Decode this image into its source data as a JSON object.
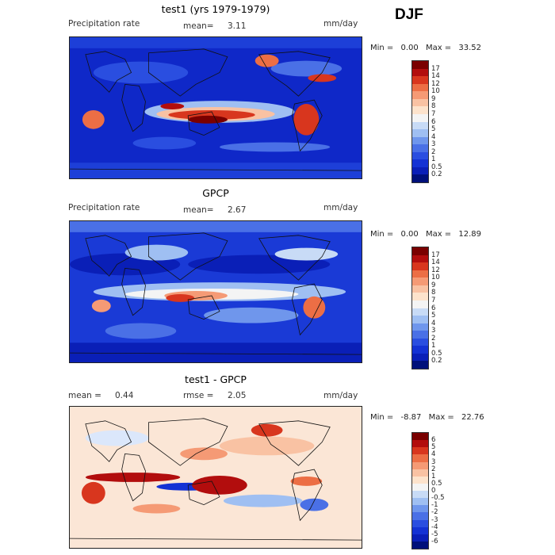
{
  "season": "DJF",
  "panels": [
    {
      "id": "test1",
      "title": "test1 (yrs 1979-1979)",
      "left_label": "Precipitation rate",
      "stat_label": "mean=",
      "stat_value": "3.11",
      "units": "mm/day",
      "min_label": "Min =",
      "min_value": "0.00",
      "max_label": "Max =",
      "max_value": "33.52",
      "colorbar": {
        "ticks": [
          "17",
          "14",
          "12",
          "10",
          "9",
          "8",
          "7",
          "6",
          "5",
          "4",
          "3",
          "2",
          "1",
          "0.5",
          "0.2"
        ],
        "colors": [
          "#7a0000",
          "#b20d0d",
          "#d8361e",
          "#ec6e45",
          "#f59a75",
          "#f9c2a3",
          "#fde3cc",
          "#f4f4f4",
          "#c8dbf6",
          "#9fbff2",
          "#6f96ec",
          "#4a70e6",
          "#2a4ee0",
          "#1432d4",
          "#0a1fb7",
          "#00107a"
        ]
      },
      "palette": [
        "#00107a",
        "#0a1fb7",
        "#1432d4",
        "#2a4ee0",
        "#4a70e6",
        "#6f96ec",
        "#9fbff2",
        "#c8dbf6",
        "#f4f4f4",
        "#fde3cc",
        "#f9c2a3",
        "#f59a75",
        "#ec6e45",
        "#d8361e",
        "#b20d0d",
        "#7a0000"
      ]
    },
    {
      "id": "gpcp",
      "title": "GPCP",
      "left_label": "Precipitation rate",
      "stat_label": "mean=",
      "stat_value": "2.67",
      "units": "mm/day",
      "min_label": "Min =",
      "min_value": "0.00",
      "max_label": "Max =",
      "max_value": "12.89",
      "colorbar": {
        "ticks": [
          "17",
          "14",
          "12",
          "10",
          "9",
          "8",
          "7",
          "6",
          "5",
          "4",
          "3",
          "2",
          "1",
          "0.5",
          "0.2"
        ],
        "colors": [
          "#7a0000",
          "#b20d0d",
          "#d8361e",
          "#ec6e45",
          "#f59a75",
          "#f9c2a3",
          "#fde3cc",
          "#f4f4f4",
          "#c8dbf6",
          "#9fbff2",
          "#6f96ec",
          "#4a70e6",
          "#2a4ee0",
          "#1432d4",
          "#0a1fb7",
          "#00107a"
        ]
      },
      "palette": [
        "#00107a",
        "#0a1fb7",
        "#1432d4",
        "#2a4ee0",
        "#4a70e6",
        "#6f96ec",
        "#9fbff2",
        "#c8dbf6",
        "#f4f4f4",
        "#fde3cc",
        "#f9c2a3",
        "#f59a75",
        "#ec6e45",
        "#d8361e",
        "#b20d0d",
        "#7a0000"
      ]
    },
    {
      "id": "diff",
      "title": "test1 - GPCP",
      "left_label": "mean =",
      "left_value": "0.44",
      "stat_label": "rmse =",
      "stat_value": "2.05",
      "units": "mm/day",
      "min_label": "Min =",
      "min_value": "-8.87",
      "max_label": "Max =",
      "max_value": "22.76",
      "colorbar": {
        "ticks": [
          "6",
          "5",
          "4",
          "3",
          "2",
          "1",
          "0.5",
          "0",
          "-0.5",
          "-1",
          "-2",
          "-3",
          "-4",
          "-5",
          "-6"
        ],
        "colors": [
          "#7a0000",
          "#b20d0d",
          "#d8361e",
          "#ec6e45",
          "#f59a75",
          "#f9c2a3",
          "#fde3cc",
          "#f4f4f4",
          "#c8dbf6",
          "#9fbff2",
          "#6f96ec",
          "#4a70e6",
          "#2a4ee0",
          "#1432d4",
          "#0a1fb7",
          "#00107a"
        ]
      },
      "palette": [
        "#1432d4",
        "#4a70e6",
        "#9fbff2",
        "#dbe7fb",
        "#fbe6d6",
        "#f9c2a3",
        "#f59a75",
        "#ec6e45",
        "#d8361e",
        "#b20d0d",
        "#7a0000"
      ]
    }
  ]
}
